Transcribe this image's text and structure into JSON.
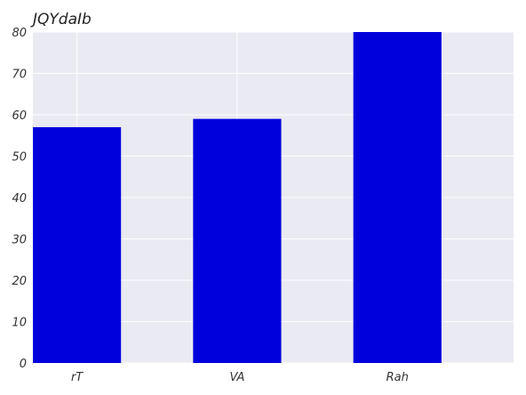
{
  "chart_data": {
    "type": "bar",
    "title": "JQYdaIb",
    "categories": [
      "rT",
      "VA",
      "Rah"
    ],
    "values": [
      57,
      59,
      80
    ],
    "xlabel": "",
    "ylabel": "",
    "ylim": [
      0,
      80
    ],
    "yticks": [
      0,
      10,
      20,
      30,
      40,
      50,
      60,
      70,
      80
    ],
    "grid": true,
    "bar_color": "#0000dd",
    "plot_background": "#eaeaf2",
    "grid_color": "#ffffff"
  }
}
